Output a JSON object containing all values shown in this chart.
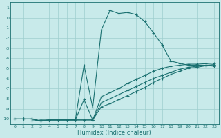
{
  "xlabel": "Humidex (Indice chaleur)",
  "bg_color": "#c8eaea",
  "line_color": "#1a7070",
  "grid_color": "#9ecece",
  "yticks": [
    1,
    0,
    -1,
    -2,
    -3,
    -4,
    -5,
    -6,
    -7,
    -8,
    -9,
    -10
  ],
  "xticks": [
    0,
    1,
    2,
    3,
    4,
    5,
    6,
    7,
    8,
    9,
    10,
    11,
    12,
    13,
    14,
    15,
    16,
    17,
    18,
    19,
    20,
    21,
    22,
    23
  ],
  "xlim": [
    -0.5,
    23.5
  ],
  "ylim": [
    -10.5,
    1.5
  ],
  "line1_x": [
    2,
    3,
    4,
    5,
    6,
    7,
    8,
    9,
    10,
    11,
    12,
    13,
    14,
    15,
    16,
    17,
    18,
    19,
    20,
    21,
    22,
    23
  ],
  "line1_y": [
    -10.2,
    -10.1,
    -10.1,
    -10.1,
    -10.1,
    -10.1,
    -4.7,
    -8.9,
    -1.2,
    0.7,
    0.4,
    0.5,
    0.3,
    -0.4,
    -1.5,
    -2.7,
    -4.3,
    -4.5,
    -4.7,
    -4.7,
    -4.7,
    -4.8
  ],
  "line2_x": [
    0,
    1,
    2,
    3,
    4,
    5,
    6,
    7,
    8,
    9,
    10,
    11,
    12,
    13,
    14,
    15,
    16,
    17,
    18,
    19,
    20,
    21,
    22,
    23
  ],
  "line2_y": [
    -10,
    -10,
    -10,
    -10.2,
    -10.1,
    -10.1,
    -10.1,
    -10.1,
    -10.1,
    -10.1,
    -7.8,
    -7.4,
    -7.0,
    -6.5,
    -6.1,
    -5.7,
    -5.3,
    -5.0,
    -4.8,
    -4.7,
    -4.6,
    -4.6,
    -4.55,
    -4.5
  ],
  "line3_x": [
    0,
    1,
    2,
    3,
    4,
    5,
    6,
    7,
    8,
    9,
    10,
    11,
    12,
    13,
    14,
    15,
    16,
    17,
    18,
    19,
    20,
    21,
    22,
    23
  ],
  "line3_y": [
    -10,
    -10,
    -10,
    -10.2,
    -10.1,
    -10.1,
    -10.1,
    -10.1,
    -8.1,
    -10.1,
    -8.4,
    -8.0,
    -7.6,
    -7.2,
    -6.8,
    -6.4,
    -6.0,
    -5.7,
    -5.4,
    -5.1,
    -4.9,
    -4.8,
    -4.7,
    -4.65
  ],
  "line4_x": [
    0,
    1,
    2,
    3,
    4,
    5,
    6,
    7,
    8,
    9,
    10,
    11,
    12,
    13,
    14,
    15,
    16,
    17,
    18,
    19,
    20,
    21,
    22,
    23
  ],
  "line4_y": [
    -10,
    -10,
    -10,
    -10.2,
    -10.1,
    -10.1,
    -10.1,
    -10.1,
    -10.1,
    -10.1,
    -8.8,
    -8.5,
    -8.1,
    -7.7,
    -7.3,
    -6.9,
    -6.4,
    -6.0,
    -5.6,
    -5.3,
    -5.0,
    -4.9,
    -4.75,
    -4.65
  ]
}
